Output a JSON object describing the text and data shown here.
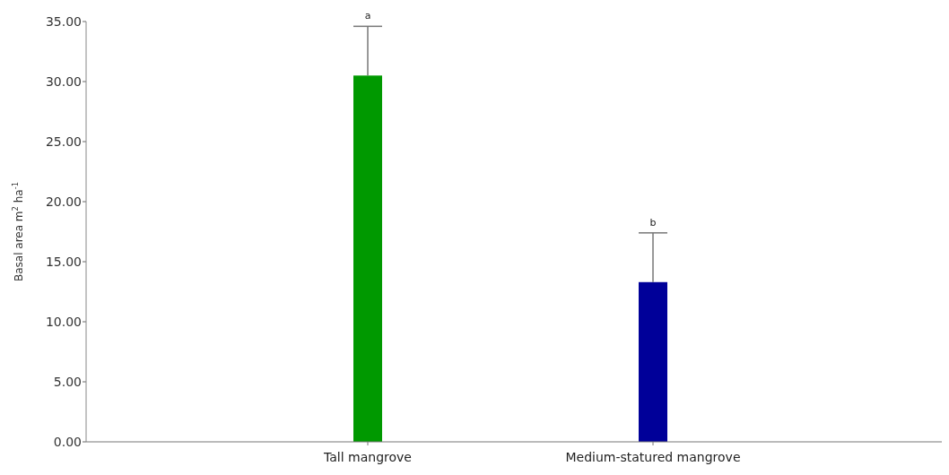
{
  "chart_data": {
    "type": "bar",
    "ylabel": "Basal area m$^{2}$ ha$^{-1}$",
    "categories": [
      "Tall mangrove",
      "Medium-statured mangrove"
    ],
    "values": [
      30.5,
      13.3
    ],
    "colors": [
      "#009900",
      "#000099"
    ],
    "errors": [
      4.1,
      4.1
    ],
    "ylim": [
      0,
      35
    ],
    "yticks": [
      {
        "value": 0,
        "label": "0.00"
      },
      {
        "value": 5,
        "label": "5.00"
      },
      {
        "value": 10,
        "label": "10.00"
      },
      {
        "value": 15,
        "label": "15.00"
      },
      {
        "value": 20,
        "label": "20.00"
      },
      {
        "value": 25,
        "label": "25.00"
      },
      {
        "value": 30,
        "label": "30.00"
      },
      {
        "value": 35,
        "label": "35.00"
      }
    ],
    "annotations": [
      {
        "text": "a",
        "x": "Tall mangrove",
        "y": 34.6
      },
      {
        "text": "b",
        "x": "Medium-statured mangrove",
        "y": 17.4
      }
    ]
  }
}
